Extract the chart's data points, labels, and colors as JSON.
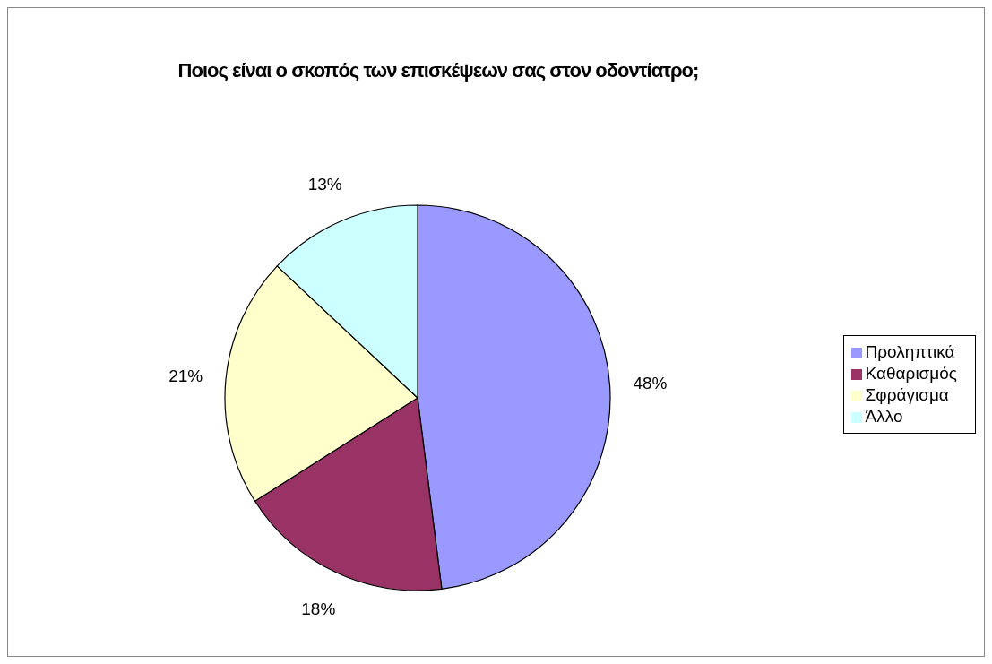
{
  "chart_data": {
    "type": "pie",
    "title": "Ποιος είναι ο σκοπός των επισκέψεων σας στον οδοντίατρο;",
    "categories": [
      "Προληπτικά",
      "Καθαρισμός",
      "Σφράγισμα",
      "Άλλο"
    ],
    "values": [
      48,
      18,
      21,
      13
    ],
    "value_labels": [
      "48%",
      "18%",
      "21%",
      "13%"
    ],
    "colors": [
      "#9999ff",
      "#993366",
      "#ffffcc",
      "#ccffff"
    ],
    "legend": "right"
  }
}
